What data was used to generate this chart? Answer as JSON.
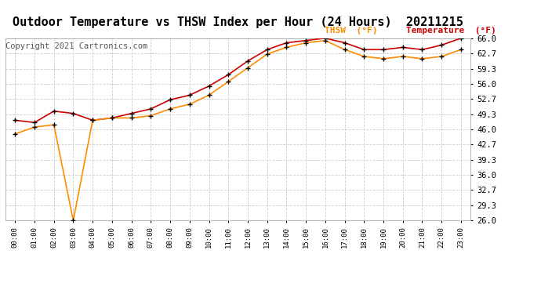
{
  "title": "Outdoor Temperature vs THSW Index per Hour (24 Hours)  20211215",
  "copyright": "Copyright 2021 Cartronics.com",
  "hours": [
    "00:00",
    "01:00",
    "02:00",
    "03:00",
    "04:00",
    "05:00",
    "06:00",
    "07:00",
    "08:00",
    "09:00",
    "10:00",
    "11:00",
    "12:00",
    "13:00",
    "14:00",
    "15:00",
    "16:00",
    "17:00",
    "18:00",
    "19:00",
    "20:00",
    "21:00",
    "22:00",
    "23:00"
  ],
  "temperature": [
    48.0,
    47.5,
    50.0,
    49.5,
    48.0,
    48.5,
    49.5,
    50.5,
    52.5,
    53.5,
    55.5,
    58.0,
    61.0,
    63.5,
    65.0,
    65.5,
    66.0,
    65.0,
    63.5,
    63.5,
    64.0,
    63.5,
    64.5,
    66.0
  ],
  "thsw": [
    45.0,
    46.5,
    47.0,
    26.0,
    48.0,
    48.5,
    48.5,
    49.0,
    50.5,
    51.5,
    53.5,
    56.5,
    59.5,
    62.5,
    64.0,
    65.0,
    65.5,
    63.5,
    62.0,
    61.5,
    62.0,
    61.5,
    62.0,
    63.5
  ],
  "temp_color": "#cc0000",
  "thsw_color": "#ff8c00",
  "marker_color": "#000000",
  "grid_color": "#cccccc",
  "background_color": "#ffffff",
  "ylim": [
    26.0,
    66.0
  ],
  "yticks": [
    26.0,
    29.3,
    32.7,
    36.0,
    39.3,
    42.7,
    46.0,
    49.3,
    52.7,
    56.0,
    59.3,
    62.7,
    66.0
  ],
  "title_fontsize": 11,
  "copyright_fontsize": 7.5,
  "legend_thsw": "THSW  (°F)",
  "legend_temp": "Temperature  (°F)"
}
